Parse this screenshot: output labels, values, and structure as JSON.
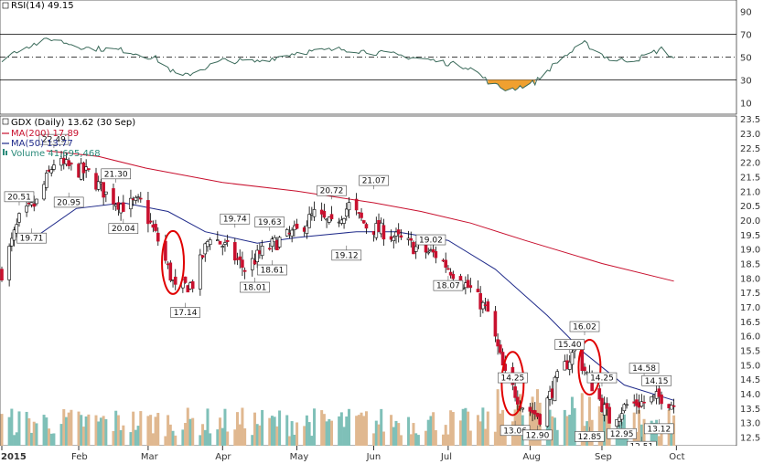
{
  "rsi_title": "RSI(14) 49.15",
  "main_title": "GDX (Daily) 13.62 (30 Sep)",
  "legend": [
    {
      "label": "MA(200) 17.89",
      "color": "#c8102e"
    },
    {
      "label": "MA(50) 13.77",
      "color": "#1f2a8a"
    },
    {
      "label": "Volume 41,695,468",
      "color": "#2a8a7a"
    }
  ],
  "rsi_ticks": [
    "90",
    "70",
    "50",
    "30",
    "10"
  ],
  "price_ticks": [
    "23.5",
    "23.0",
    "22.5",
    "22.0",
    "21.5",
    "21.0",
    "20.5",
    "20.0",
    "19.5",
    "19.0",
    "18.5",
    "18.0",
    "17.5",
    "17.0",
    "16.5",
    "16.0",
    "15.5",
    "15.0",
    "14.5",
    "14.0",
    "13.5",
    "13.0",
    "12.5"
  ],
  "x_labels": [
    "2015",
    "Feb",
    "Mar",
    "Apr",
    "May",
    "Jun",
    "Jul",
    "Aug",
    "Sep",
    "Oct"
  ],
  "annotations": [
    "20.51",
    "19.71",
    "20.95",
    "22.49",
    "21.30",
    "20.04",
    "17.14",
    "19.74",
    "18.01",
    "19.63",
    "18.61",
    "20.72",
    "19.12",
    "21.07",
    "19.02",
    "18.07",
    "15.40",
    "14.25",
    "13.06",
    "12.90",
    "16.02",
    "14.25",
    "12.85",
    "12.95",
    "12.51",
    "14.58",
    "14.15",
    "13.12"
  ],
  "colors": {
    "up": "#ffffff",
    "down": "#c8102e",
    "ma200": "#c8102e",
    "ma50": "#1f2a8a",
    "rsi": "#3a6a5a",
    "rsi_fill": "#f0a030",
    "vol_up": "#7fc0b8",
    "vol_down": "#e0b890",
    "circle": "#e00000"
  },
  "chart_data": {
    "type": "candlestick",
    "title": "GDX (Daily) 13.62 (30 Sep)",
    "ylim": [
      12.2,
      23.6
    ],
    "rsi_ylim": [
      0,
      100
    ],
    "rsi_levels": [
      30,
      50,
      70
    ],
    "xlim": [
      "2015-01-02",
      "2015-10-02"
    ],
    "x_ticks": [
      {
        "label": "2015",
        "date": "2015-01-02"
      },
      {
        "label": "Feb",
        "date": "2015-02-02"
      },
      {
        "label": "Mar",
        "date": "2015-03-02"
      },
      {
        "label": "Apr",
        "date": "2015-04-01"
      },
      {
        "label": "May",
        "date": "2015-05-01"
      },
      {
        "label": "Jun",
        "date": "2015-06-01"
      },
      {
        "label": "Jul",
        "date": "2015-07-01"
      },
      {
        "label": "Aug",
        "date": "2015-08-03"
      },
      {
        "label": "Sep",
        "date": "2015-09-01"
      },
      {
        "label": "Oct",
        "date": "2015-10-01"
      }
    ],
    "close_path": [
      [
        "2015-01-02",
        18.2
      ],
      [
        "2015-01-09",
        20.0
      ],
      [
        "2015-01-16",
        20.6
      ],
      [
        "2015-01-23",
        22.0
      ],
      [
        "2015-01-30",
        21.8
      ],
      [
        "2015-02-06",
        21.6
      ],
      [
        "2015-02-13",
        20.9
      ],
      [
        "2015-02-20",
        20.5
      ],
      [
        "2015-02-27",
        20.6
      ],
      [
        "2015-03-06",
        19.3
      ],
      [
        "2015-03-13",
        17.6
      ],
      [
        "2015-03-20",
        17.8
      ],
      [
        "2015-03-27",
        19.5
      ],
      [
        "2015-04-03",
        19.0
      ],
      [
        "2015-04-10",
        18.3
      ],
      [
        "2015-04-17",
        18.9
      ],
      [
        "2015-04-24",
        19.3
      ],
      [
        "2015-05-01",
        19.6
      ],
      [
        "2015-05-08",
        20.2
      ],
      [
        "2015-05-15",
        19.8
      ],
      [
        "2015-05-22",
        20.5
      ],
      [
        "2015-05-29",
        19.8
      ],
      [
        "2015-06-05",
        19.6
      ],
      [
        "2015-06-12",
        19.3
      ],
      [
        "2015-06-19",
        19.0
      ],
      [
        "2015-06-26",
        18.8
      ],
      [
        "2015-07-03",
        18.2
      ],
      [
        "2015-07-10",
        17.6
      ],
      [
        "2015-07-17",
        16.8
      ],
      [
        "2015-07-24",
        14.6
      ],
      [
        "2015-07-31",
        13.6
      ],
      [
        "2015-08-07",
        13.2
      ],
      [
        "2015-08-14",
        14.5
      ],
      [
        "2015-08-21",
        15.5
      ],
      [
        "2015-08-28",
        14.3
      ],
      [
        "2015-09-04",
        13.1
      ],
      [
        "2015-09-11",
        13.6
      ],
      [
        "2015-09-18",
        13.7
      ],
      [
        "2015-09-25",
        13.9
      ],
      [
        "2015-09-30",
        13.62
      ]
    ],
    "annotated_points": [
      {
        "date": "2015-01-09",
        "value": 20.51,
        "kind": "high"
      },
      {
        "date": "2015-01-14",
        "value": 19.71,
        "kind": "low"
      },
      {
        "date": "2015-01-29",
        "value": 20.95,
        "kind": "low"
      },
      {
        "date": "2015-01-23",
        "value": 22.49,
        "kind": "high"
      },
      {
        "date": "2015-02-17",
        "value": 21.3,
        "kind": "high"
      },
      {
        "date": "2015-02-20",
        "value": 20.04,
        "kind": "low"
      },
      {
        "date": "2015-03-17",
        "value": 17.14,
        "kind": "low"
      },
      {
        "date": "2015-04-06",
        "value": 19.74,
        "kind": "high"
      },
      {
        "date": "2015-04-14",
        "value": 18.01,
        "kind": "low"
      },
      {
        "date": "2015-04-20",
        "value": 19.63,
        "kind": "high"
      },
      {
        "date": "2015-04-21",
        "value": 18.61,
        "kind": "low"
      },
      {
        "date": "2015-05-15",
        "value": 20.72,
        "kind": "high"
      },
      {
        "date": "2015-05-21",
        "value": 19.12,
        "kind": "low"
      },
      {
        "date": "2015-06-01",
        "value": 21.07,
        "kind": "high"
      },
      {
        "date": "2015-06-24",
        "value": 19.02,
        "kind": "high"
      },
      {
        "date": "2015-07-01",
        "value": 18.07,
        "kind": "low"
      },
      {
        "date": "2015-08-19",
        "value": 15.4,
        "kind": "high"
      },
      {
        "date": "2015-07-27",
        "value": 14.25,
        "kind": "high"
      },
      {
        "date": "2015-07-28",
        "value": 13.06,
        "kind": "low"
      },
      {
        "date": "2015-08-06",
        "value": 12.9,
        "kind": "low"
      },
      {
        "date": "2015-08-25",
        "value": 16.02,
        "kind": "high"
      },
      {
        "date": "2015-09-01",
        "value": 14.25,
        "kind": "high"
      },
      {
        "date": "2015-08-27",
        "value": 12.85,
        "kind": "low"
      },
      {
        "date": "2015-09-09",
        "value": 12.95,
        "kind": "low"
      },
      {
        "date": "2015-09-17",
        "value": 12.51,
        "kind": "low"
      },
      {
        "date": "2015-09-18",
        "value": 14.58,
        "kind": "high"
      },
      {
        "date": "2015-09-23",
        "value": 14.15,
        "kind": "high"
      },
      {
        "date": "2015-09-24",
        "value": 13.12,
        "kind": "low"
      }
    ],
    "ma200": [
      [
        "2015-01-20",
        22.4
      ],
      [
        "2015-02-10",
        22.2
      ],
      [
        "2015-03-01",
        21.8
      ],
      [
        "2015-04-01",
        21.3
      ],
      [
        "2015-05-01",
        21.0
      ],
      [
        "2015-06-01",
        20.6
      ],
      [
        "2015-06-20",
        20.3
      ],
      [
        "2015-07-10",
        19.9
      ],
      [
        "2015-08-01",
        19.3
      ],
      [
        "2015-09-01",
        18.5
      ],
      [
        "2015-09-30",
        17.89
      ]
    ],
    "ma50": [
      [
        "2015-01-12",
        19.2
      ],
      [
        "2015-02-01",
        20.4
      ],
      [
        "2015-02-20",
        20.6
      ],
      [
        "2015-03-10",
        20.3
      ],
      [
        "2015-03-25",
        19.6
      ],
      [
        "2015-04-15",
        19.2
      ],
      [
        "2015-05-01",
        19.4
      ],
      [
        "2015-05-25",
        19.6
      ],
      [
        "2015-06-10",
        19.6
      ],
      [
        "2015-07-01",
        19.3
      ],
      [
        "2015-07-20",
        18.3
      ],
      [
        "2015-08-10",
        16.7
      ],
      [
        "2015-08-25",
        15.4
      ],
      [
        "2015-09-10",
        14.3
      ],
      [
        "2015-09-30",
        13.77
      ]
    ],
    "rsi": [
      [
        "2015-01-02",
        48
      ],
      [
        "2015-01-10",
        58
      ],
      [
        "2015-01-22",
        66
      ],
      [
        "2015-02-05",
        58
      ],
      [
        "2015-02-20",
        56
      ],
      [
        "2015-03-05",
        49
      ],
      [
        "2015-03-15",
        32
      ],
      [
        "2015-04-01",
        47
      ],
      [
        "2015-04-15",
        46
      ],
      [
        "2015-05-01",
        54
      ],
      [
        "2015-05-20",
        57
      ],
      [
        "2015-06-10",
        52
      ],
      [
        "2015-06-25",
        47
      ],
      [
        "2015-07-10",
        41
      ],
      [
        "2015-07-18",
        27
      ],
      [
        "2015-07-25",
        21
      ],
      [
        "2015-08-05",
        28
      ],
      [
        "2015-08-15",
        48
      ],
      [
        "2015-08-25",
        62
      ],
      [
        "2015-09-05",
        47
      ],
      [
        "2015-09-15",
        48
      ],
      [
        "2015-09-25",
        57
      ],
      [
        "2015-09-30",
        49.15
      ]
    ],
    "circled_dates": [
      "2015-03-12",
      "2015-07-27",
      "2015-08-27"
    ]
  }
}
